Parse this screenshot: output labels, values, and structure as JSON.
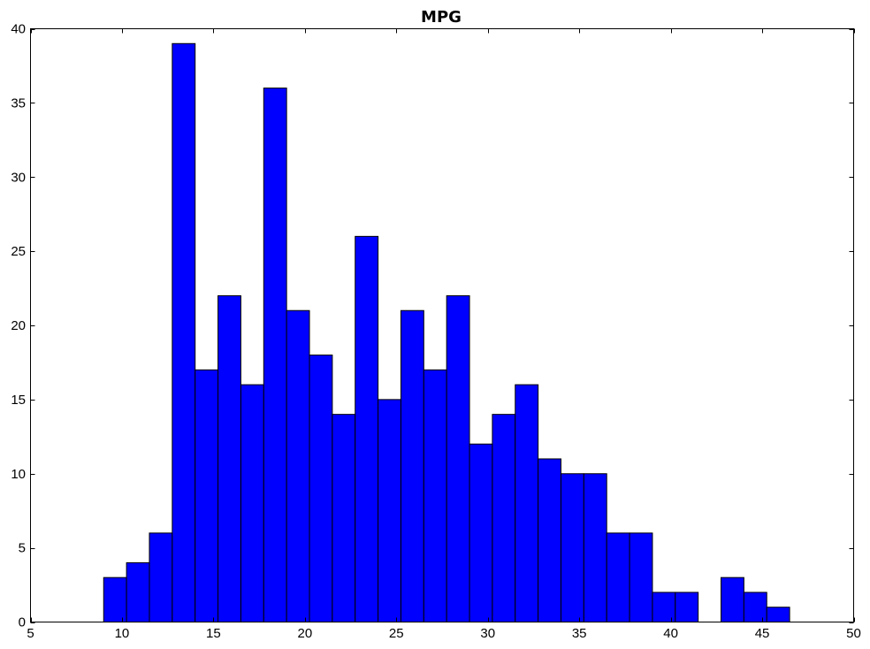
{
  "chart_data": {
    "type": "bar",
    "title": "MPG",
    "xlabel": "",
    "ylabel": "",
    "xlim": [
      5,
      50
    ],
    "ylim": [
      0,
      40
    ],
    "bar_color": "#0000ff",
    "edge_color": "#000000",
    "grid": false,
    "xticks": [
      "5",
      "10",
      "15",
      "20",
      "25",
      "30",
      "35",
      "40",
      "45",
      "50"
    ],
    "yticks": [
      "0",
      "5",
      "10",
      "15",
      "20",
      "25",
      "30",
      "35",
      "40"
    ],
    "bins": [
      {
        "start": 9.0,
        "end": 10.25,
        "count": 3
      },
      {
        "start": 10.25,
        "end": 11.5,
        "count": 4
      },
      {
        "start": 11.5,
        "end": 12.75,
        "count": 6
      },
      {
        "start": 12.75,
        "end": 14.0,
        "count": 39
      },
      {
        "start": 14.0,
        "end": 15.25,
        "count": 17
      },
      {
        "start": 15.25,
        "end": 16.5,
        "count": 22
      },
      {
        "start": 16.5,
        "end": 17.75,
        "count": 16
      },
      {
        "start": 17.75,
        "end": 19.0,
        "count": 36
      },
      {
        "start": 19.0,
        "end": 20.25,
        "count": 21
      },
      {
        "start": 20.25,
        "end": 21.5,
        "count": 18
      },
      {
        "start": 21.5,
        "end": 22.75,
        "count": 14
      },
      {
        "start": 22.75,
        "end": 24.0,
        "count": 26
      },
      {
        "start": 24.0,
        "end": 25.25,
        "count": 15
      },
      {
        "start": 25.25,
        "end": 26.5,
        "count": 21
      },
      {
        "start": 26.5,
        "end": 27.75,
        "count": 17
      },
      {
        "start": 27.75,
        "end": 29.0,
        "count": 22
      },
      {
        "start": 29.0,
        "end": 30.25,
        "count": 12
      },
      {
        "start": 30.25,
        "end": 31.5,
        "count": 14
      },
      {
        "start": 31.5,
        "end": 32.75,
        "count": 16
      },
      {
        "start": 32.75,
        "end": 34.0,
        "count": 11
      },
      {
        "start": 34.0,
        "end": 35.25,
        "count": 10
      },
      {
        "start": 35.25,
        "end": 36.5,
        "count": 10
      },
      {
        "start": 36.5,
        "end": 37.75,
        "count": 6
      },
      {
        "start": 37.75,
        "end": 39.0,
        "count": 6
      },
      {
        "start": 39.0,
        "end": 40.25,
        "count": 2
      },
      {
        "start": 40.25,
        "end": 41.5,
        "count": 2
      },
      {
        "start": 41.5,
        "end": 42.75,
        "count": 0
      },
      {
        "start": 42.75,
        "end": 44.0,
        "count": 3
      },
      {
        "start": 44.0,
        "end": 45.25,
        "count": 2
      },
      {
        "start": 45.25,
        "end": 46.5,
        "count": 1
      }
    ]
  }
}
